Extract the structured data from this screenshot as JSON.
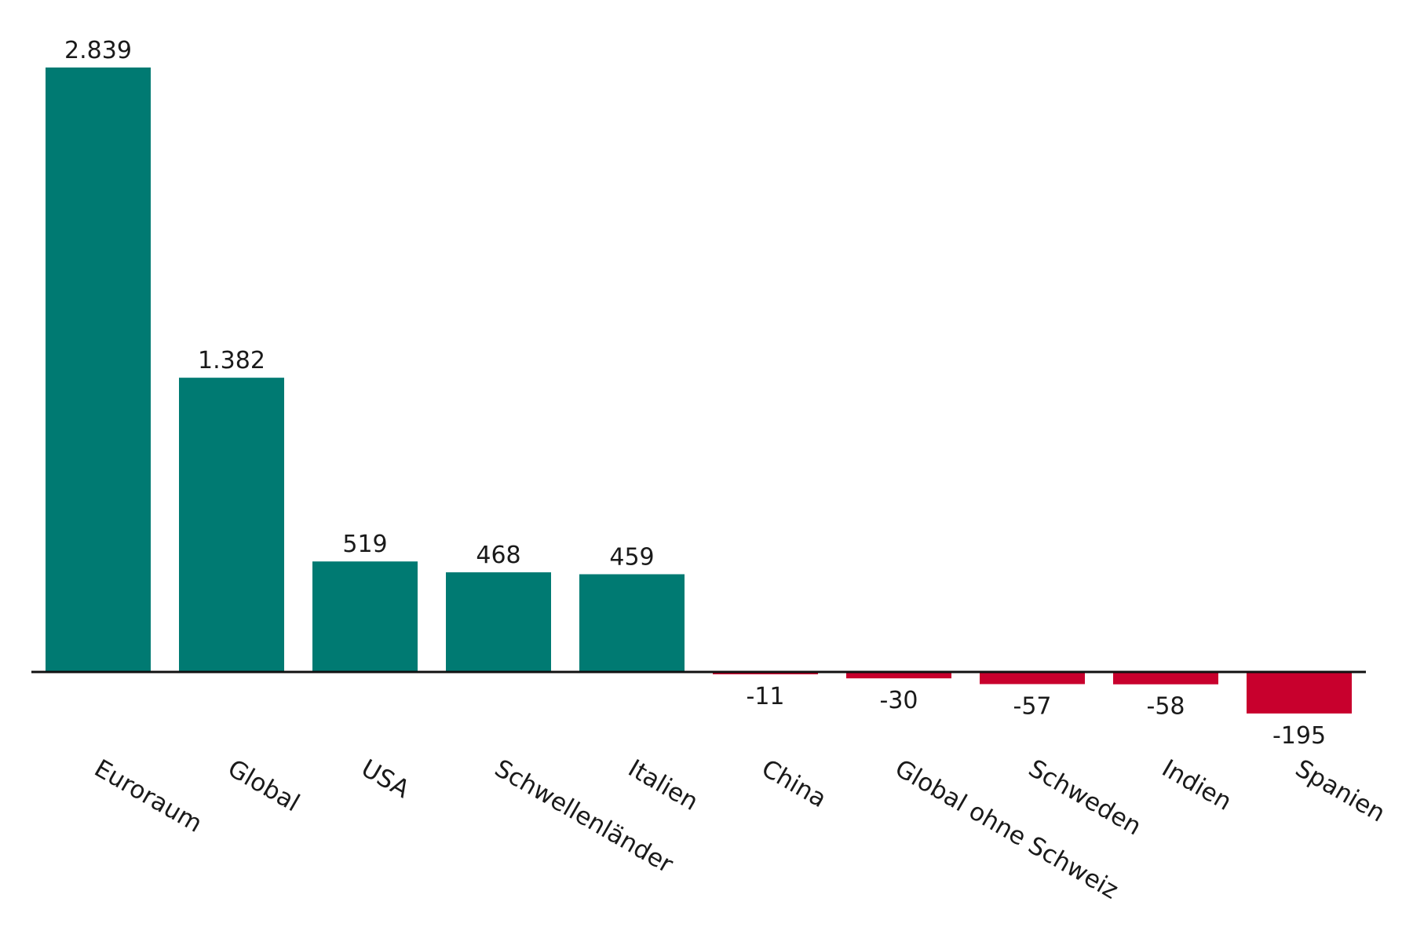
{
  "chart_data": {
    "type": "bar",
    "categories": [
      "Euroraum",
      "Global",
      "USA",
      "Schwellenländer",
      "Italien",
      "China",
      "Global ohne Schweiz",
      "Schweden",
      "Indien",
      "Spanien"
    ],
    "values": [
      2839,
      1382,
      519,
      468,
      459,
      -11,
      -30,
      -57,
      -58,
      -195
    ],
    "value_labels": [
      "2.839",
      "1.382",
      "519",
      "468",
      "459",
      "-11",
      "-30",
      "-57",
      "-58",
      "-195"
    ],
    "title": "",
    "xlabel": "",
    "ylabel": "",
    "ylim": [
      -195,
      2839
    ],
    "grid": false,
    "legend": "none",
    "colors": {
      "positive": "#007a72",
      "negative": "#c8002d",
      "axis": "#111111"
    }
  }
}
